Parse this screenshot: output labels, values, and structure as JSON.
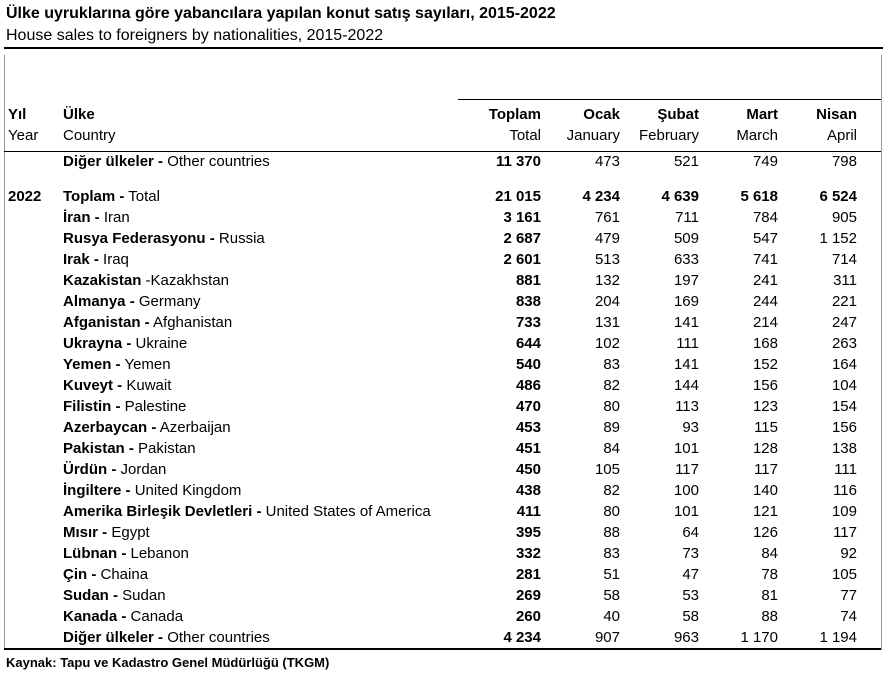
{
  "header": {
    "title": "Ülke uyruklarına göre yabancılara yapılan konut satış sayıları, 2015-2022",
    "subtitle": "House sales to foreigners by nationalities, 2015-2022"
  },
  "columns": [
    {
      "tr": "Yıl",
      "en": "Year"
    },
    {
      "tr": "Ülke",
      "en": "Country"
    },
    {
      "tr": "Toplam",
      "en": "Total"
    },
    {
      "tr": "Ocak",
      "en": "January"
    },
    {
      "tr": "Şubat",
      "en": "February"
    },
    {
      "tr": "Mart",
      "en": "March"
    },
    {
      "tr": "Nisan",
      "en": "April"
    }
  ],
  "rows": [
    {
      "tr": "Diğer ülkeler -",
      "en": "Other countries",
      "values": [
        "11 370",
        "473",
        "521",
        "749",
        "798"
      ]
    },
    {
      "year": "2022",
      "tr": "Toplam -",
      "en": "Total",
      "values": [
        "21 015",
        "4 234",
        "4 639",
        "5 618",
        "6 524"
      ]
    },
    {
      "tr": "İran -",
      "en": "Iran",
      "values": [
        "3 161",
        "761",
        "711",
        "784",
        "905"
      ]
    },
    {
      "tr": "Rusya Federasyonu -",
      "en": "Russia",
      "values": [
        "2 687",
        "479",
        "509",
        "547",
        "1 152"
      ]
    },
    {
      "tr": "Irak -",
      "en": "Iraq",
      "values": [
        "2 601",
        "513",
        "633",
        "741",
        "714"
      ]
    },
    {
      "tr": "Kazakistan",
      "en": "-Kazakhstan",
      "values": [
        "881",
        "132",
        "197",
        "241",
        "311"
      ]
    },
    {
      "tr": "Almanya -",
      "en": "Germany",
      "values": [
        "838",
        "204",
        "169",
        "244",
        "221"
      ]
    },
    {
      "tr": "Afganistan -",
      "en": "Afghanistan",
      "values": [
        "733",
        "131",
        "141",
        "214",
        "247"
      ]
    },
    {
      "tr": "Ukrayna -",
      "en": "Ukraine",
      "values": [
        "644",
        "102",
        "111",
        "168",
        "263"
      ]
    },
    {
      "tr": "Yemen -",
      "en": "Yemen",
      "values": [
        "540",
        "83",
        "141",
        "152",
        "164"
      ]
    },
    {
      "tr": "Kuveyt -",
      "en": "Kuwait",
      "values": [
        "486",
        "82",
        "144",
        "156",
        "104"
      ]
    },
    {
      "tr": "Filistin -",
      "en": "Palestine",
      "values": [
        "470",
        "80",
        "113",
        "123",
        "154"
      ]
    },
    {
      "tr": "Azerbaycan -",
      "en": "Azerbaijan",
      "values": [
        "453",
        "89",
        "93",
        "115",
        "156"
      ]
    },
    {
      "tr": "Pakistan -",
      "en": "Pakistan",
      "values": [
        "451",
        "84",
        "101",
        "128",
        "138"
      ]
    },
    {
      "tr": "Ürdün -",
      "en": "Jordan",
      "values": [
        "450",
        "105",
        "117",
        "117",
        "111"
      ]
    },
    {
      "tr": "İngiltere -",
      "en": "United Kingdom",
      "values": [
        "438",
        "82",
        "100",
        "140",
        "116"
      ]
    },
    {
      "tr": "Amerika Birleşik Devletleri -",
      "en": "United States of America",
      "values": [
        "411",
        "80",
        "101",
        "121",
        "109"
      ]
    },
    {
      "tr": "Mısır -",
      "en": "Egypt",
      "values": [
        "395",
        "88",
        "64",
        "126",
        "117"
      ]
    },
    {
      "tr": "Lübnan -",
      "en": "Lebanon",
      "values": [
        "332",
        "83",
        "73",
        "84",
        "92"
      ]
    },
    {
      "tr": "Çin -",
      "en": "Chaina",
      "values": [
        "281",
        "51",
        "47",
        "78",
        "105"
      ]
    },
    {
      "tr": "Sudan -",
      "en": "Sudan",
      "values": [
        "269",
        "58",
        "53",
        "81",
        "77"
      ]
    },
    {
      "tr": "Kanada -",
      "en": "Canada",
      "values": [
        "260",
        "40",
        "58",
        "88",
        "74"
      ]
    },
    {
      "tr": "Diğer ülkeler -",
      "en": "Other countries",
      "values": [
        "4 234",
        "907",
        "963",
        "1 170",
        "1 194"
      ]
    }
  ],
  "footer": "Kaynak: Tapu ve Kadastro Genel Müdürlüğü (TKGM)"
}
